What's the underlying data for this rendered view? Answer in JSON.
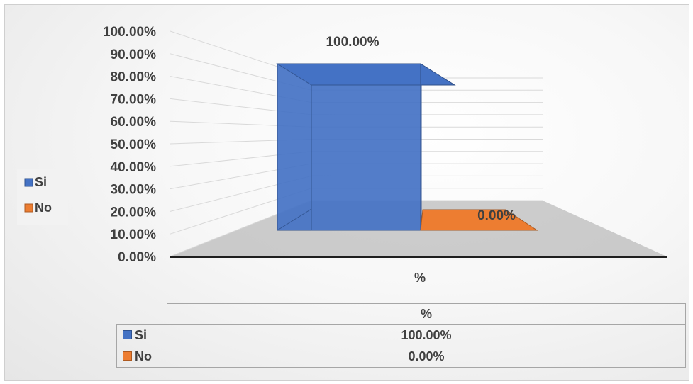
{
  "chart_data": {
    "type": "bar",
    "categories": [
      "%"
    ],
    "series": [
      {
        "name": "Si",
        "values": [
          1.0
        ],
        "label": "100.00%",
        "color": "#4472C4"
      },
      {
        "name": "No",
        "values": [
          0.0
        ],
        "label": "0.00%",
        "color": "#ED7D31"
      }
    ],
    "y_ticks": [
      "0.00%",
      "10.00%",
      "20.00%",
      "30.00%",
      "40.00%",
      "50.00%",
      "60.00%",
      "70.00%",
      "80.00%",
      "90.00%",
      "100.00%"
    ],
    "ylim": [
      0,
      1
    ],
    "style": "3d-column",
    "legend": "left",
    "data_table": {
      "header": "%",
      "rows": [
        {
          "name": "Si",
          "value": "100.00%"
        },
        {
          "name": "No",
          "value": "0.00%"
        }
      ]
    }
  }
}
